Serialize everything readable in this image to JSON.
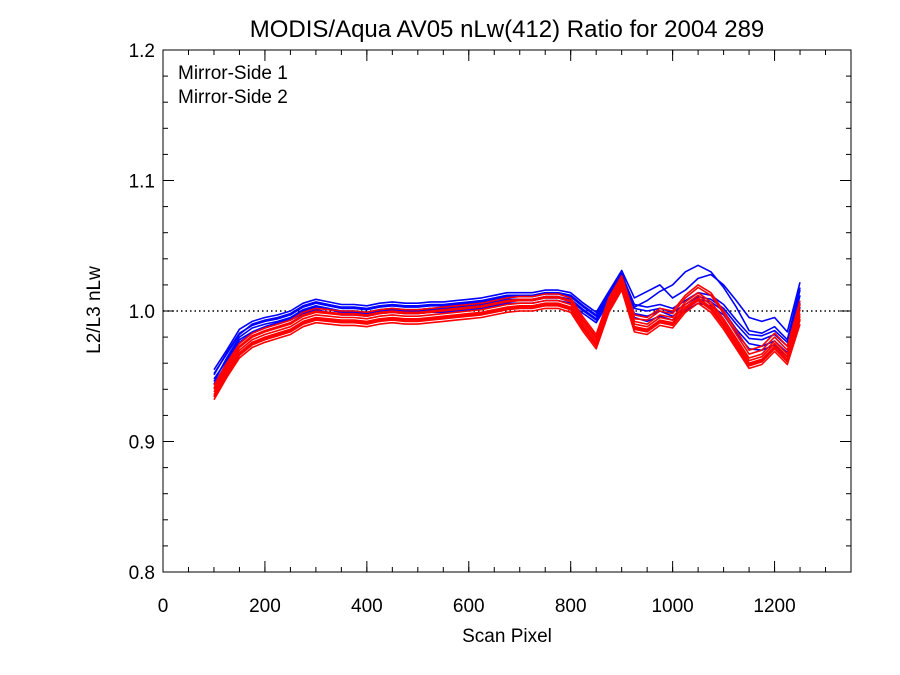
{
  "chart_data": {
    "type": "line",
    "title": "MODIS/Aqua AV05 nLw(412) Ratio for 2004 289",
    "xlabel": "Scan Pixel",
    "ylabel": "L2/L3 nLw",
    "xlim": [
      0,
      1350
    ],
    "ylim": [
      0.8,
      1.2
    ],
    "xticks": [
      0,
      200,
      400,
      600,
      800,
      1000,
      1200
    ],
    "yticks": [
      0.8,
      0.9,
      1.0,
      1.1,
      1.2
    ],
    "x_tick_labels": [
      "0",
      "200",
      "400",
      "600",
      "800",
      "1000",
      "1200"
    ],
    "y_tick_labels": [
      "0.8",
      "0.9",
      "1.0",
      "1.1",
      "1.2"
    ],
    "x_minor_step": 50,
    "y_minor_step": 0.02,
    "reference_line": {
      "y": 1.0,
      "style": "dotted"
    },
    "legend": {
      "placement": "top-left",
      "entries": [
        {
          "label": "Mirror-Side 1",
          "color": "#0000ff"
        },
        {
          "label": "Mirror-Side 2",
          "color": "#ff0000"
        }
      ]
    },
    "x": [
      100,
      125,
      150,
      175,
      200,
      225,
      250,
      275,
      300,
      325,
      350,
      375,
      400,
      425,
      450,
      475,
      500,
      525,
      550,
      575,
      600,
      625,
      650,
      675,
      700,
      725,
      750,
      775,
      800,
      825,
      850,
      875,
      900,
      925,
      950,
      975,
      1000,
      1025,
      1050,
      1075,
      1100,
      1125,
      1150,
      1175,
      1200,
      1225,
      1250
    ],
    "series": [
      {
        "color": "#0000ff",
        "values": [
          0.951,
          0.968,
          0.983,
          0.989,
          0.992,
          0.994,
          0.997,
          1.003,
          1.006,
          1.004,
          1.002,
          1.002,
          1.001,
          1.003,
          1.004,
          1.003,
          1.003,
          1.004,
          1.004,
          1.005,
          1.006,
          1.007,
          1.009,
          1.011,
          1.011,
          1.011,
          1.013,
          1.013,
          1.011,
          1.003,
          0.996,
          1.012,
          1.028,
          1.005,
          1.003,
          1.005,
          1.002,
          1.008,
          1.014,
          1.012,
          1.005,
          0.993,
          0.982,
          0.981,
          0.985,
          0.976,
          1.016
        ]
      },
      {
        "color": "#0000ff",
        "values": [
          0.948,
          0.962,
          0.978,
          0.984,
          0.988,
          0.991,
          0.994,
          1.0,
          1.003,
          1.001,
          0.999,
          0.999,
          0.998,
          1.0,
          1.001,
          1.0,
          1.0,
          1.001,
          1.001,
          1.002,
          1.003,
          1.004,
          1.006,
          1.008,
          1.008,
          1.008,
          1.01,
          1.01,
          1.008,
          1.0,
          0.993,
          1.009,
          1.025,
          1.002,
          1.0,
          1.002,
          0.999,
          1.005,
          1.011,
          1.009,
          1.002,
          0.99,
          0.979,
          0.978,
          0.982,
          0.973,
          1.012
        ]
      },
      {
        "color": "#0000ff",
        "values": [
          0.955,
          0.97,
          0.986,
          0.992,
          0.995,
          0.997,
          1.0,
          1.006,
          1.009,
          1.007,
          1.005,
          1.005,
          1.004,
          1.006,
          1.007,
          1.006,
          1.006,
          1.007,
          1.007,
          1.008,
          1.009,
          1.01,
          1.012,
          1.014,
          1.014,
          1.014,
          1.016,
          1.016,
          1.014,
          1.006,
          0.999,
          1.015,
          1.031,
          1.01,
          1.015,
          1.02,
          1.01,
          1.016,
          1.025,
          1.028,
          1.02,
          1.008,
          0.995,
          0.992,
          0.995,
          0.984,
          1.022
        ]
      },
      {
        "color": "#0000ff",
        "values": [
          0.946,
          0.964,
          0.98,
          0.987,
          0.99,
          0.992,
          0.995,
          1.001,
          1.004,
          1.002,
          1.0,
          1.0,
          0.999,
          1.001,
          1.002,
          1.001,
          1.001,
          1.002,
          1.002,
          1.003,
          1.004,
          1.005,
          1.007,
          1.009,
          1.009,
          1.009,
          1.011,
          1.011,
          1.009,
          1.001,
          0.994,
          1.01,
          1.026,
          0.998,
          0.996,
          1.0,
          0.996,
          1.002,
          1.009,
          1.007,
          1.0,
          0.986,
          0.975,
          0.973,
          0.977,
          0.968,
          1.006
        ]
      },
      {
        "color": "#0000ff",
        "values": [
          0.952,
          0.967,
          0.982,
          0.99,
          0.993,
          0.995,
          0.998,
          1.004,
          1.007,
          1.005,
          1.003,
          1.003,
          1.002,
          1.004,
          1.005,
          1.004,
          1.004,
          1.005,
          1.005,
          1.006,
          1.007,
          1.008,
          1.01,
          1.012,
          1.012,
          1.012,
          1.014,
          1.014,
          1.012,
          1.004,
          0.997,
          1.013,
          1.029,
          1.003,
          1.008,
          1.015,
          1.02,
          1.03,
          1.035,
          1.03,
          1.018,
          1.003,
          0.985,
          0.983,
          0.988,
          0.978,
          1.018
        ]
      },
      {
        "color": "#0000ff",
        "values": [
          0.944,
          0.96,
          0.976,
          0.983,
          0.987,
          0.99,
          0.993,
          0.998,
          1.001,
          0.999,
          0.997,
          0.997,
          0.996,
          0.998,
          0.999,
          0.998,
          0.998,
          0.999,
          0.999,
          1.0,
          1.001,
          1.002,
          1.004,
          1.006,
          1.006,
          1.006,
          1.008,
          1.008,
          1.006,
          0.998,
          0.991,
          1.007,
          1.023,
          0.995,
          0.992,
          0.996,
          0.993,
          1.0,
          1.006,
          1.004,
          0.997,
          0.983,
          0.971,
          0.97,
          0.974,
          0.965,
          1.003
        ]
      }
    ],
    "series_2": [
      {
        "color": "#ff0000",
        "values": [
          0.938,
          0.955,
          0.97,
          0.978,
          0.982,
          0.985,
          0.988,
          0.994,
          0.997,
          0.996,
          0.995,
          0.995,
          0.994,
          0.996,
          0.997,
          0.996,
          0.996,
          0.997,
          0.998,
          0.999,
          1.0,
          1.001,
          1.003,
          1.005,
          1.006,
          1.006,
          1.008,
          1.008,
          1.005,
          0.99,
          0.977,
          1.005,
          1.022,
          0.99,
          0.988,
          0.995,
          0.993,
          1.005,
          1.012,
          1.005,
          0.992,
          0.977,
          0.962,
          0.965,
          0.975,
          0.965,
          0.998
        ]
      },
      {
        "color": "#ff0000",
        "values": [
          0.934,
          0.951,
          0.966,
          0.974,
          0.978,
          0.981,
          0.984,
          0.99,
          0.993,
          0.992,
          0.991,
          0.991,
          0.99,
          0.992,
          0.993,
          0.992,
          0.992,
          0.993,
          0.994,
          0.995,
          0.996,
          0.997,
          0.999,
          1.001,
          1.002,
          1.002,
          1.004,
          1.004,
          1.001,
          0.986,
          0.973,
          1.001,
          1.018,
          0.986,
          0.984,
          0.991,
          0.989,
          1.001,
          1.008,
          1.001,
          0.988,
          0.973,
          0.958,
          0.961,
          0.971,
          0.961,
          0.993
        ]
      },
      {
        "color": "#ff0000",
        "values": [
          0.941,
          0.958,
          0.973,
          0.981,
          0.985,
          0.988,
          0.991,
          0.997,
          1.0,
          0.999,
          0.998,
          0.998,
          0.997,
          0.999,
          1.0,
          0.999,
          0.999,
          1.0,
          1.001,
          1.002,
          1.003,
          1.004,
          1.006,
          1.008,
          1.009,
          1.009,
          1.011,
          1.011,
          1.008,
          0.993,
          0.98,
          1.008,
          1.025,
          0.994,
          0.993,
          1.0,
          0.998,
          1.01,
          1.018,
          1.012,
          0.998,
          0.982,
          0.967,
          0.97,
          0.98,
          0.97,
          1.005
        ]
      },
      {
        "color": "#ff0000",
        "values": [
          0.936,
          0.953,
          0.968,
          0.976,
          0.98,
          0.983,
          0.986,
          0.992,
          0.995,
          0.994,
          0.993,
          0.993,
          0.992,
          0.994,
          0.995,
          0.994,
          0.994,
          0.995,
          0.996,
          0.997,
          0.998,
          0.999,
          1.001,
          1.003,
          1.004,
          1.004,
          1.006,
          1.006,
          1.003,
          0.988,
          0.975,
          1.003,
          1.02,
          0.988,
          0.986,
          0.993,
          0.991,
          1.003,
          1.01,
          1.003,
          0.99,
          0.975,
          0.96,
          0.963,
          0.973,
          0.963,
          0.996
        ]
      },
      {
        "color": "#ff0000",
        "values": [
          0.943,
          0.96,
          0.975,
          0.983,
          0.987,
          0.99,
          0.993,
          0.999,
          1.002,
          1.001,
          1.0,
          1.0,
          0.999,
          1.001,
          1.002,
          1.001,
          1.001,
          1.002,
          1.003,
          1.004,
          1.005,
          1.006,
          1.008,
          1.01,
          1.011,
          1.011,
          1.013,
          1.013,
          1.01,
          0.995,
          0.982,
          1.01,
          1.027,
          0.997,
          0.995,
          1.002,
          1.0,
          1.012,
          1.02,
          1.014,
          1.0,
          0.985,
          0.97,
          0.973,
          0.983,
          0.973,
          1.008
        ]
      },
      {
        "color": "#ff0000",
        "values": [
          0.932,
          0.949,
          0.964,
          0.972,
          0.976,
          0.979,
          0.982,
          0.988,
          0.991,
          0.99,
          0.989,
          0.989,
          0.988,
          0.99,
          0.991,
          0.99,
          0.99,
          0.991,
          0.992,
          0.993,
          0.994,
          0.995,
          0.997,
          0.999,
          1.0,
          1.0,
          1.002,
          1.002,
          0.999,
          0.984,
          0.971,
          0.999,
          1.016,
          0.984,
          0.982,
          0.989,
          0.987,
          0.999,
          1.006,
          0.999,
          0.986,
          0.971,
          0.956,
          0.959,
          0.969,
          0.959,
          0.99
        ]
      },
      {
        "color": "#ff0000",
        "values": [
          0.94,
          0.957,
          0.972,
          0.98,
          0.984,
          0.987,
          0.99,
          0.996,
          0.999,
          0.998,
          0.997,
          0.997,
          0.996,
          0.998,
          0.999,
          0.998,
          0.998,
          0.999,
          1.0,
          1.001,
          1.002,
          1.003,
          1.005,
          1.007,
          1.008,
          1.008,
          1.01,
          1.01,
          1.007,
          0.992,
          0.979,
          1.007,
          1.024,
          0.992,
          0.99,
          0.997,
          0.995,
          1.007,
          1.014,
          1.007,
          0.994,
          0.979,
          0.964,
          0.967,
          0.977,
          0.967,
          1.001
        ]
      },
      {
        "color": "#ff0000",
        "values": [
          0.935,
          0.952,
          0.967,
          0.975,
          0.979,
          0.982,
          0.985,
          0.991,
          0.994,
          0.993,
          0.992,
          0.992,
          0.991,
          0.993,
          0.994,
          0.993,
          0.993,
          0.994,
          0.995,
          0.996,
          0.997,
          0.998,
          1.0,
          1.002,
          1.003,
          1.003,
          1.005,
          1.005,
          1.002,
          0.987,
          0.974,
          1.002,
          1.019,
          0.987,
          0.985,
          0.992,
          0.99,
          1.002,
          1.009,
          1.002,
          0.989,
          0.974,
          0.959,
          0.962,
          0.972,
          0.962,
          0.994
        ]
      }
    ]
  }
}
